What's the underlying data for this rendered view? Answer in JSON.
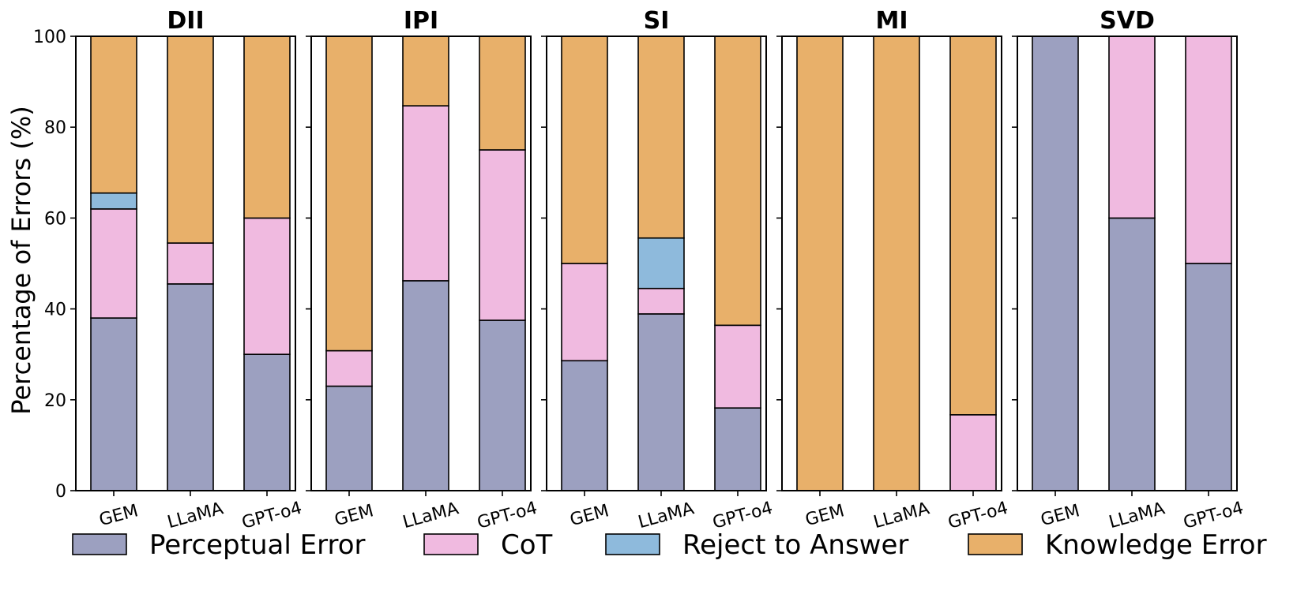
{
  "chart_data": {
    "type": "bar",
    "stacked": true,
    "ylabel": "Percentage of Errors (%)",
    "ylim": [
      0,
      100
    ],
    "yticks": [
      0,
      20,
      40,
      60,
      80,
      100
    ],
    "categories": [
      "GEM",
      "LLaMA",
      "GPT-o4"
    ],
    "series": [
      {
        "name": "Perceptual Error",
        "color": "#9ca0c0"
      },
      {
        "name": "CoT",
        "color": "#f0bae0"
      },
      {
        "name": "Reject to Answer",
        "color": "#8ebadc"
      },
      {
        "name": "Knowledge Error",
        "color": "#e8b06a"
      }
    ],
    "panels": [
      {
        "title": "DII",
        "values": {
          "Perceptual Error": [
            38,
            45.5,
            30
          ],
          "CoT": [
            24,
            9,
            30
          ],
          "Reject to Answer": [
            3.5,
            0,
            0
          ],
          "Knowledge Error": [
            34.5,
            45.5,
            40
          ]
        }
      },
      {
        "title": "IPI",
        "values": {
          "Perceptual Error": [
            23,
            46.2,
            37.5
          ],
          "CoT": [
            7.8,
            38.5,
            37.5
          ],
          "Reject to Answer": [
            0,
            0,
            0
          ],
          "Knowledge Error": [
            69.2,
            15.3,
            25
          ]
        }
      },
      {
        "title": "SI",
        "values": {
          "Perceptual Error": [
            28.6,
            38.9,
            18.2
          ],
          "CoT": [
            21.4,
            5.6,
            18.2
          ],
          "Reject to Answer": [
            0,
            11.1,
            0
          ],
          "Knowledge Error": [
            50,
            44.4,
            63.6
          ]
        }
      },
      {
        "title": "MI",
        "values": {
          "Perceptual Error": [
            0,
            0,
            0
          ],
          "CoT": [
            0,
            0,
            16.7
          ],
          "Reject to Answer": [
            0,
            0,
            0
          ],
          "Knowledge Error": [
            100,
            100,
            83.3
          ]
        }
      },
      {
        "title": "SVD",
        "values": {
          "Perceptual Error": [
            100,
            60,
            50
          ],
          "CoT": [
            0,
            40,
            50
          ],
          "Reject to Answer": [
            0,
            0,
            0
          ],
          "Knowledge Error": [
            0,
            0,
            0
          ]
        }
      }
    ]
  }
}
